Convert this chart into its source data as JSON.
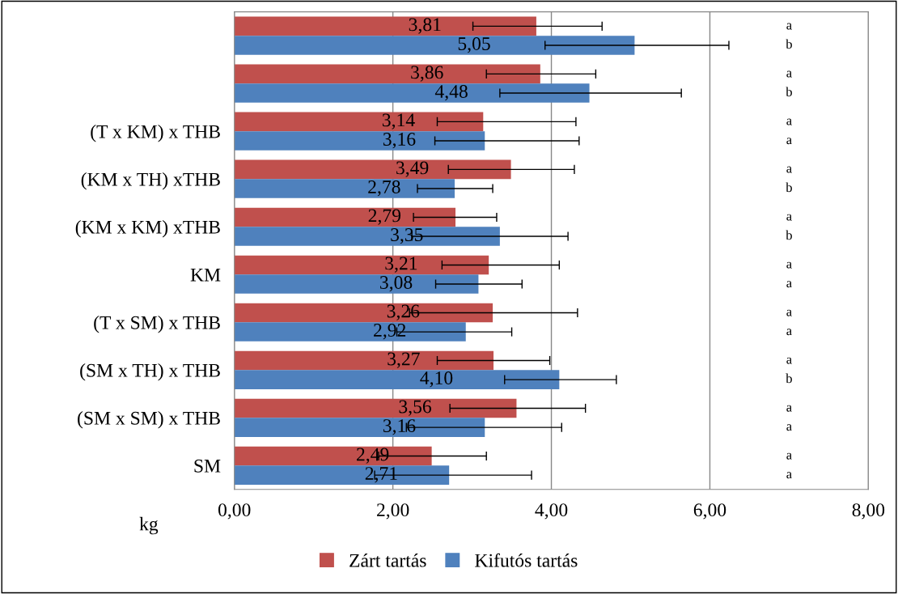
{
  "chart_data": {
    "type": "bar",
    "orientation": "horizontal",
    "xlabel": "kg",
    "categories": [
      null,
      null,
      "(T x KM) x THB",
      "(KM x TH) xTHB",
      "(KM x KM) xTHB",
      "KM",
      "(T x SM) x THB",
      "(SM x TH) x THB",
      "(SM x SM) x THB",
      "SM"
    ],
    "series": [
      {
        "name": "Zárt tartás",
        "color": "#c0504d",
        "values": [
          3.81,
          3.86,
          3.14,
          3.49,
          2.79,
          3.21,
          3.26,
          3.27,
          3.56,
          2.49
        ],
        "value_labels": [
          "3,81",
          "3,86",
          "3,14",
          "3,49",
          "2,79",
          "3,21",
          "3,26",
          "3,27",
          "3,56",
          "2,49"
        ],
        "errors": [
          [
            3.01,
            4.64
          ],
          [
            3.18,
            4.56
          ],
          [
            2.56,
            4.31
          ],
          [
            2.7,
            4.29
          ],
          [
            2.26,
            3.31
          ],
          [
            2.62,
            4.1
          ],
          [
            2.21,
            4.33
          ],
          [
            2.56,
            3.98
          ],
          [
            2.72,
            4.43
          ],
          [
            1.82,
            3.18
          ]
        ]
      },
      {
        "name": "Kifutós tartás",
        "color": "#4f81bd",
        "values": [
          5.05,
          4.48,
          3.16,
          2.78,
          3.35,
          3.08,
          2.92,
          4.1,
          3.16,
          2.71
        ],
        "value_labels": [
          "5,05",
          "4,48",
          "3,16",
          "2,78",
          "3,35",
          "3,08",
          "2,92",
          "4,10",
          "3,16",
          "2,71"
        ],
        "errors": [
          [
            3.92,
            6.24
          ],
          [
            3.35,
            5.64
          ],
          [
            2.53,
            4.35
          ],
          [
            2.31,
            3.26
          ],
          [
            2.24,
            4.21
          ],
          [
            2.54,
            3.63
          ],
          [
            2.05,
            3.5
          ],
          [
            3.41,
            4.82
          ],
          [
            2.17,
            4.13
          ],
          [
            1.77,
            3.75
          ]
        ]
      }
    ],
    "annotations": [
      "a",
      "b",
      "a",
      "b",
      "a",
      "a",
      "a",
      "b",
      "a",
      "b",
      "a",
      "a",
      "a",
      "a",
      "a",
      "b",
      "a",
      "a",
      "a",
      "a"
    ],
    "xlim": [
      0,
      8
    ],
    "xticks": [
      {
        "value": 0,
        "label": "0,00"
      },
      {
        "value": 2,
        "label": "2,00"
      },
      {
        "value": 4,
        "label": "4,00"
      },
      {
        "value": 6,
        "label": "6,00"
      },
      {
        "value": 8,
        "label": "8,00"
      }
    ],
    "grid": "x",
    "legend": "bottom"
  }
}
